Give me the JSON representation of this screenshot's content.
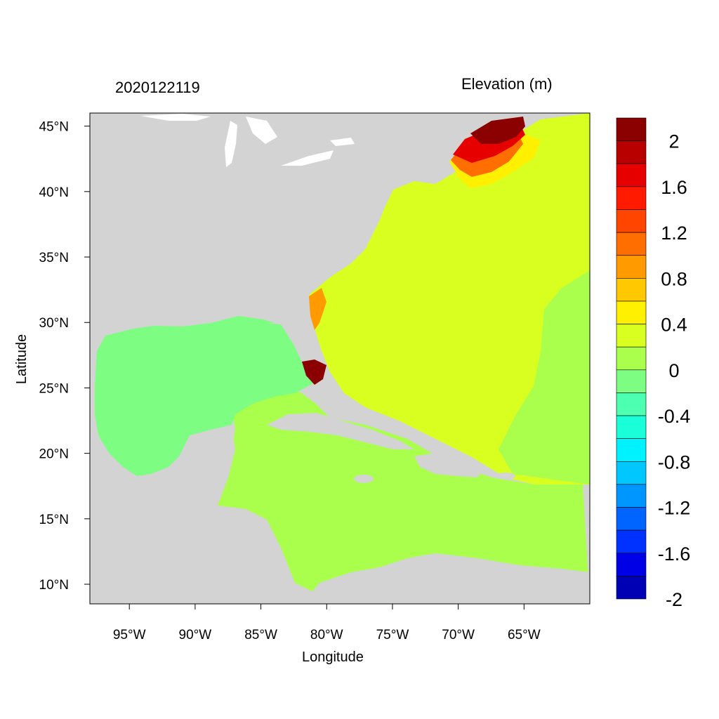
{
  "header": {
    "timestamp": "2020122119",
    "variable": "Elevation (m)"
  },
  "axes": {
    "xlabel": "Longitude",
    "ylabel": "Latitude",
    "lon_range": [
      -98,
      -60
    ],
    "lat_range": [
      8.5,
      46
    ],
    "x_ticks": [
      {
        "value": -95,
        "label": "95°W"
      },
      {
        "value": -90,
        "label": "90°W"
      },
      {
        "value": -85,
        "label": "85°W"
      },
      {
        "value": -80,
        "label": "80°W"
      },
      {
        "value": -75,
        "label": "75°W"
      },
      {
        "value": -70,
        "label": "70°W"
      },
      {
        "value": -65,
        "label": "65°W"
      }
    ],
    "y_ticks": [
      {
        "value": 45,
        "label": "45°N"
      },
      {
        "value": 40,
        "label": "40°N"
      },
      {
        "value": 35,
        "label": "35°N"
      },
      {
        "value": 30,
        "label": "30°N"
      },
      {
        "value": 25,
        "label": "25°N"
      },
      {
        "value": 20,
        "label": "20°N"
      },
      {
        "value": 15,
        "label": "15°N"
      },
      {
        "value": 10,
        "label": "10°N"
      }
    ]
  },
  "colors": {
    "land": "#d3d3d3",
    "surge_high": "#8b0000",
    "ocean_pos": "#d8ff20",
    "gulf": "#7dfd82",
    "caribbean": "#aaff4c"
  },
  "colorbar": {
    "bands": [
      "#8b0000",
      "#b80000",
      "#e60000",
      "#ff1a00",
      "#ff4500",
      "#ff6e00",
      "#ff9a00",
      "#ffc800",
      "#fff000",
      "#d8ff20",
      "#aaff4c",
      "#7dfd82",
      "#4dffb0",
      "#1affda",
      "#00f2ff",
      "#00c8ff",
      "#0096ff",
      "#0064ff",
      "#0032ff",
      "#0000e6",
      "#0000b4"
    ],
    "labels": [
      "2",
      "1.6",
      "1.2",
      "0.8",
      "0.4",
      "0",
      "-0.4",
      "-0.8",
      "-1.2",
      "-1.6",
      "-2"
    ]
  }
}
